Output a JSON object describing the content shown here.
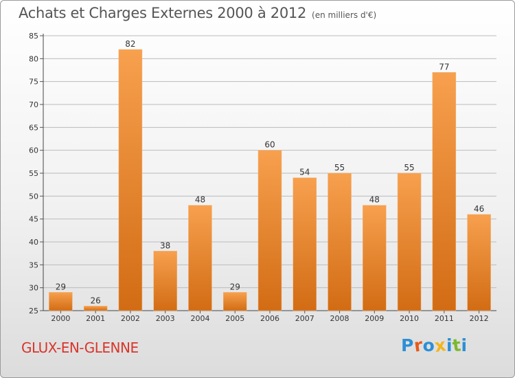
{
  "title": "Achats et Charges Externes 2000 à 2012",
  "unit_label": "(en milliers d'€)",
  "place_name": "GLUX-EN-GLENNE",
  "logo": {
    "text": "Proxiti",
    "colors": [
      "#2d8fd6",
      "#e85a1a",
      "#2d8fd6",
      "#f2b61b",
      "#2d8fd6",
      "#7cb82f",
      "#2d8fd6"
    ]
  },
  "colors": {
    "bar_top": "#f7a04e",
    "bar_bottom": "#d26c14",
    "grid": "#bbbbbb",
    "title": "#555555",
    "place": "#d9352a"
  },
  "chart_data": {
    "type": "bar",
    "categories": [
      "2000",
      "2001",
      "2002",
      "2003",
      "2004",
      "2005",
      "2006",
      "2007",
      "2008",
      "2009",
      "2010",
      "2011",
      "2012"
    ],
    "values": [
      29,
      26,
      82,
      38,
      48,
      29,
      60,
      54,
      55,
      48,
      55,
      77,
      46
    ],
    "ylim": [
      25,
      85
    ],
    "yticks": [
      25,
      30,
      35,
      40,
      45,
      50,
      55,
      60,
      65,
      70,
      75,
      80,
      85
    ],
    "grid": true
  }
}
